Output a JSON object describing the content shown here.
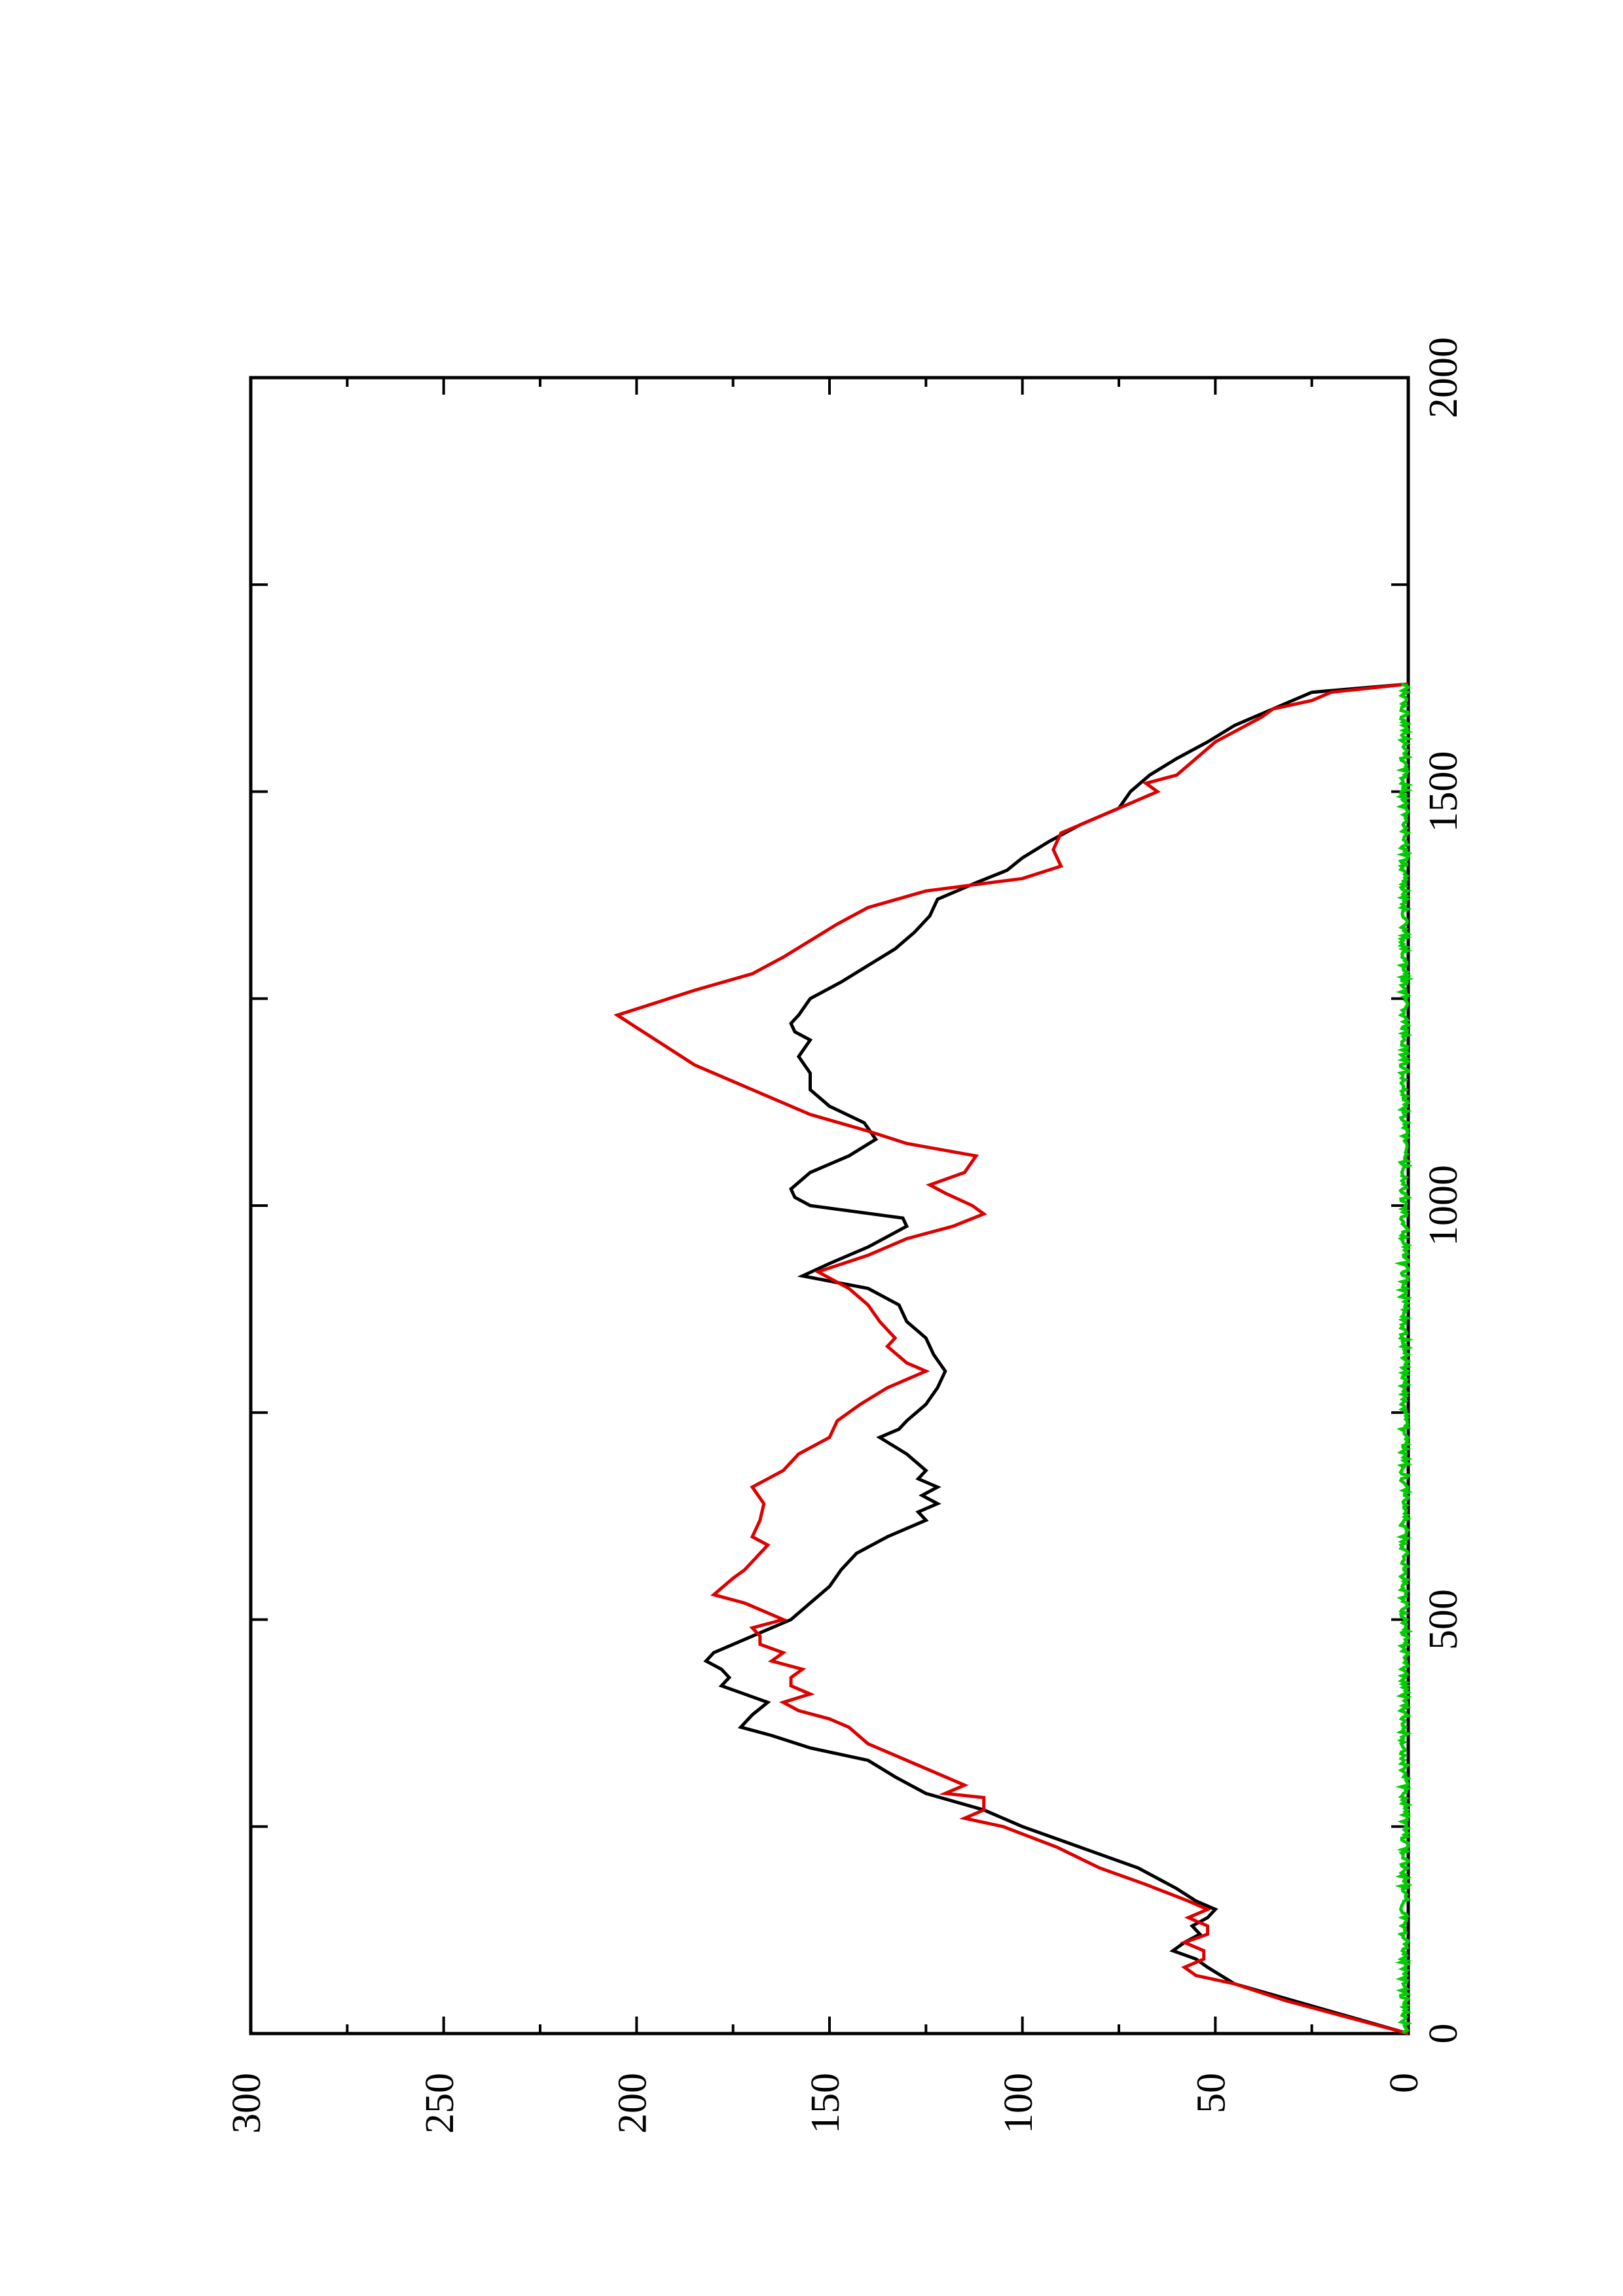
{
  "chart_data": {
    "type": "line",
    "orientation": "rotated-90-ccw",
    "title": "",
    "xlabel": "",
    "ylabel": "",
    "xlim": [
      0,
      2000
    ],
    "ylim": [
      0,
      300
    ],
    "x_ticks": [
      "0",
      "500",
      "1000",
      "1500",
      "2000"
    ],
    "y_ticks": [
      "0",
      "50",
      "100",
      "150",
      "200",
      "250",
      "300"
    ],
    "grid": false,
    "legend": "none",
    "series": [
      {
        "color": "#000000",
        "points": [
          [
            0,
            0
          ],
          [
            20,
            15
          ],
          [
            40,
            30
          ],
          [
            60,
            45
          ],
          [
            80,
            52
          ],
          [
            90,
            55
          ],
          [
            100,
            61
          ],
          [
            110,
            58
          ],
          [
            120,
            54
          ],
          [
            130,
            56
          ],
          [
            140,
            52
          ],
          [
            150,
            50
          ],
          [
            160,
            55
          ],
          [
            175,
            60
          ],
          [
            200,
            70
          ],
          [
            225,
            85
          ],
          [
            250,
            100
          ],
          [
            270,
            110
          ],
          [
            290,
            125
          ],
          [
            310,
            133
          ],
          [
            330,
            140
          ],
          [
            345,
            155
          ],
          [
            360,
            165
          ],
          [
            370,
            173
          ],
          [
            385,
            170
          ],
          [
            400,
            166
          ],
          [
            410,
            172
          ],
          [
            420,
            178
          ],
          [
            430,
            176
          ],
          [
            440,
            178
          ],
          [
            450,
            182
          ],
          [
            460,
            180
          ],
          [
            480,
            170
          ],
          [
            500,
            160
          ],
          [
            520,
            155
          ],
          [
            540,
            150
          ],
          [
            560,
            147
          ],
          [
            580,
            143
          ],
          [
            600,
            135
          ],
          [
            610,
            130
          ],
          [
            620,
            125
          ],
          [
            630,
            127
          ],
          [
            640,
            122
          ],
          [
            650,
            126
          ],
          [
            660,
            122
          ],
          [
            670,
            127
          ],
          [
            680,
            125
          ],
          [
            700,
            130
          ],
          [
            720,
            137
          ],
          [
            730,
            132
          ],
          [
            740,
            130
          ],
          [
            760,
            125
          ],
          [
            780,
            122
          ],
          [
            800,
            120
          ],
          [
            820,
            123
          ],
          [
            840,
            125
          ],
          [
            860,
            130
          ],
          [
            880,
            132
          ],
          [
            900,
            140
          ],
          [
            915,
            157
          ],
          [
            930,
            150
          ],
          [
            950,
            140
          ],
          [
            975,
            130
          ],
          [
            985,
            131
          ],
          [
            1000,
            155
          ],
          [
            1010,
            159
          ],
          [
            1020,
            160
          ],
          [
            1040,
            155
          ],
          [
            1060,
            145
          ],
          [
            1080,
            138
          ],
          [
            1100,
            141
          ],
          [
            1120,
            150
          ],
          [
            1140,
            155
          ],
          [
            1160,
            155
          ],
          [
            1180,
            158
          ],
          [
            1200,
            155
          ],
          [
            1210,
            159
          ],
          [
            1220,
            160
          ],
          [
            1230,
            158
          ],
          [
            1250,
            155
          ],
          [
            1270,
            147
          ],
          [
            1290,
            140
          ],
          [
            1310,
            133
          ],
          [
            1330,
            128
          ],
          [
            1350,
            124
          ],
          [
            1370,
            122
          ],
          [
            1390,
            112
          ],
          [
            1405,
            104
          ],
          [
            1420,
            100
          ],
          [
            1440,
            93
          ],
          [
            1460,
            85
          ],
          [
            1480,
            75
          ],
          [
            1500,
            72
          ],
          [
            1520,
            67
          ],
          [
            1540,
            60
          ],
          [
            1560,
            52
          ],
          [
            1580,
            45
          ],
          [
            1600,
            35
          ],
          [
            1620,
            25
          ],
          [
            1630,
            0
          ]
        ]
      },
      {
        "color": "#dd0000",
        "points": [
          [
            0,
            0
          ],
          [
            20,
            16
          ],
          [
            40,
            32
          ],
          [
            60,
            45
          ],
          [
            70,
            55
          ],
          [
            80,
            58
          ],
          [
            90,
            53
          ],
          [
            100,
            53
          ],
          [
            110,
            58
          ],
          [
            120,
            52
          ],
          [
            130,
            52
          ],
          [
            140,
            57
          ],
          [
            150,
            52
          ],
          [
            160,
            57
          ],
          [
            180,
            68
          ],
          [
            200,
            80
          ],
          [
            225,
            91
          ],
          [
            250,
            105
          ],
          [
            260,
            115
          ],
          [
            270,
            110
          ],
          [
            285,
            110
          ],
          [
            290,
            120
          ],
          [
            300,
            115
          ],
          [
            310,
            120
          ],
          [
            330,
            130
          ],
          [
            350,
            140
          ],
          [
            370,
            145
          ],
          [
            380,
            150
          ],
          [
            390,
            158
          ],
          [
            400,
            162
          ],
          [
            410,
            155
          ],
          [
            420,
            160
          ],
          [
            430,
            160
          ],
          [
            440,
            157
          ],
          [
            450,
            165
          ],
          [
            460,
            162
          ],
          [
            470,
            168
          ],
          [
            480,
            168
          ],
          [
            490,
            170
          ],
          [
            500,
            162
          ],
          [
            510,
            167
          ],
          [
            520,
            172
          ],
          [
            530,
            180
          ],
          [
            550,
            175
          ],
          [
            560,
            172
          ],
          [
            580,
            168
          ],
          [
            590,
            166
          ],
          [
            600,
            170
          ],
          [
            620,
            168
          ],
          [
            640,
            167
          ],
          [
            660,
            170
          ],
          [
            680,
            162
          ],
          [
            700,
            158
          ],
          [
            720,
            150
          ],
          [
            740,
            148
          ],
          [
            760,
            142
          ],
          [
            780,
            135
          ],
          [
            800,
            125
          ],
          [
            810,
            130
          ],
          [
            830,
            135
          ],
          [
            840,
            133
          ],
          [
            860,
            137
          ],
          [
            880,
            140
          ],
          [
            900,
            145
          ],
          [
            920,
            153
          ],
          [
            940,
            140
          ],
          [
            960,
            130
          ],
          [
            975,
            118
          ],
          [
            990,
            110
          ],
          [
            1000,
            113
          ],
          [
            1015,
            120
          ],
          [
            1025,
            124
          ],
          [
            1040,
            115
          ],
          [
            1060,
            112
          ],
          [
            1075,
            130
          ],
          [
            1090,
            140
          ],
          [
            1110,
            155
          ],
          [
            1130,
            165
          ],
          [
            1150,
            175
          ],
          [
            1170,
            185
          ],
          [
            1185,
            190
          ],
          [
            1200,
            195
          ],
          [
            1215,
            200
          ],
          [
            1230,
            205
          ],
          [
            1245,
            195
          ],
          [
            1260,
            185
          ],
          [
            1280,
            170
          ],
          [
            1300,
            162
          ],
          [
            1320,
            155
          ],
          [
            1340,
            148
          ],
          [
            1360,
            140
          ],
          [
            1380,
            125
          ],
          [
            1395,
            100
          ],
          [
            1410,
            90
          ],
          [
            1430,
            92
          ],
          [
            1450,
            90
          ],
          [
            1470,
            80
          ],
          [
            1490,
            70
          ],
          [
            1500,
            65
          ],
          [
            1510,
            68
          ],
          [
            1520,
            60
          ],
          [
            1540,
            55
          ],
          [
            1560,
            50
          ],
          [
            1580,
            42
          ],
          [
            1590,
            38
          ],
          [
            1600,
            35
          ],
          [
            1610,
            25
          ],
          [
            1620,
            20
          ],
          [
            1630,
            0
          ]
        ]
      },
      {
        "color": "#00cc00",
        "noise_amplitude": 2,
        "points": [
          [
            0,
            0
          ],
          [
            1630,
            0
          ]
        ]
      }
    ]
  }
}
